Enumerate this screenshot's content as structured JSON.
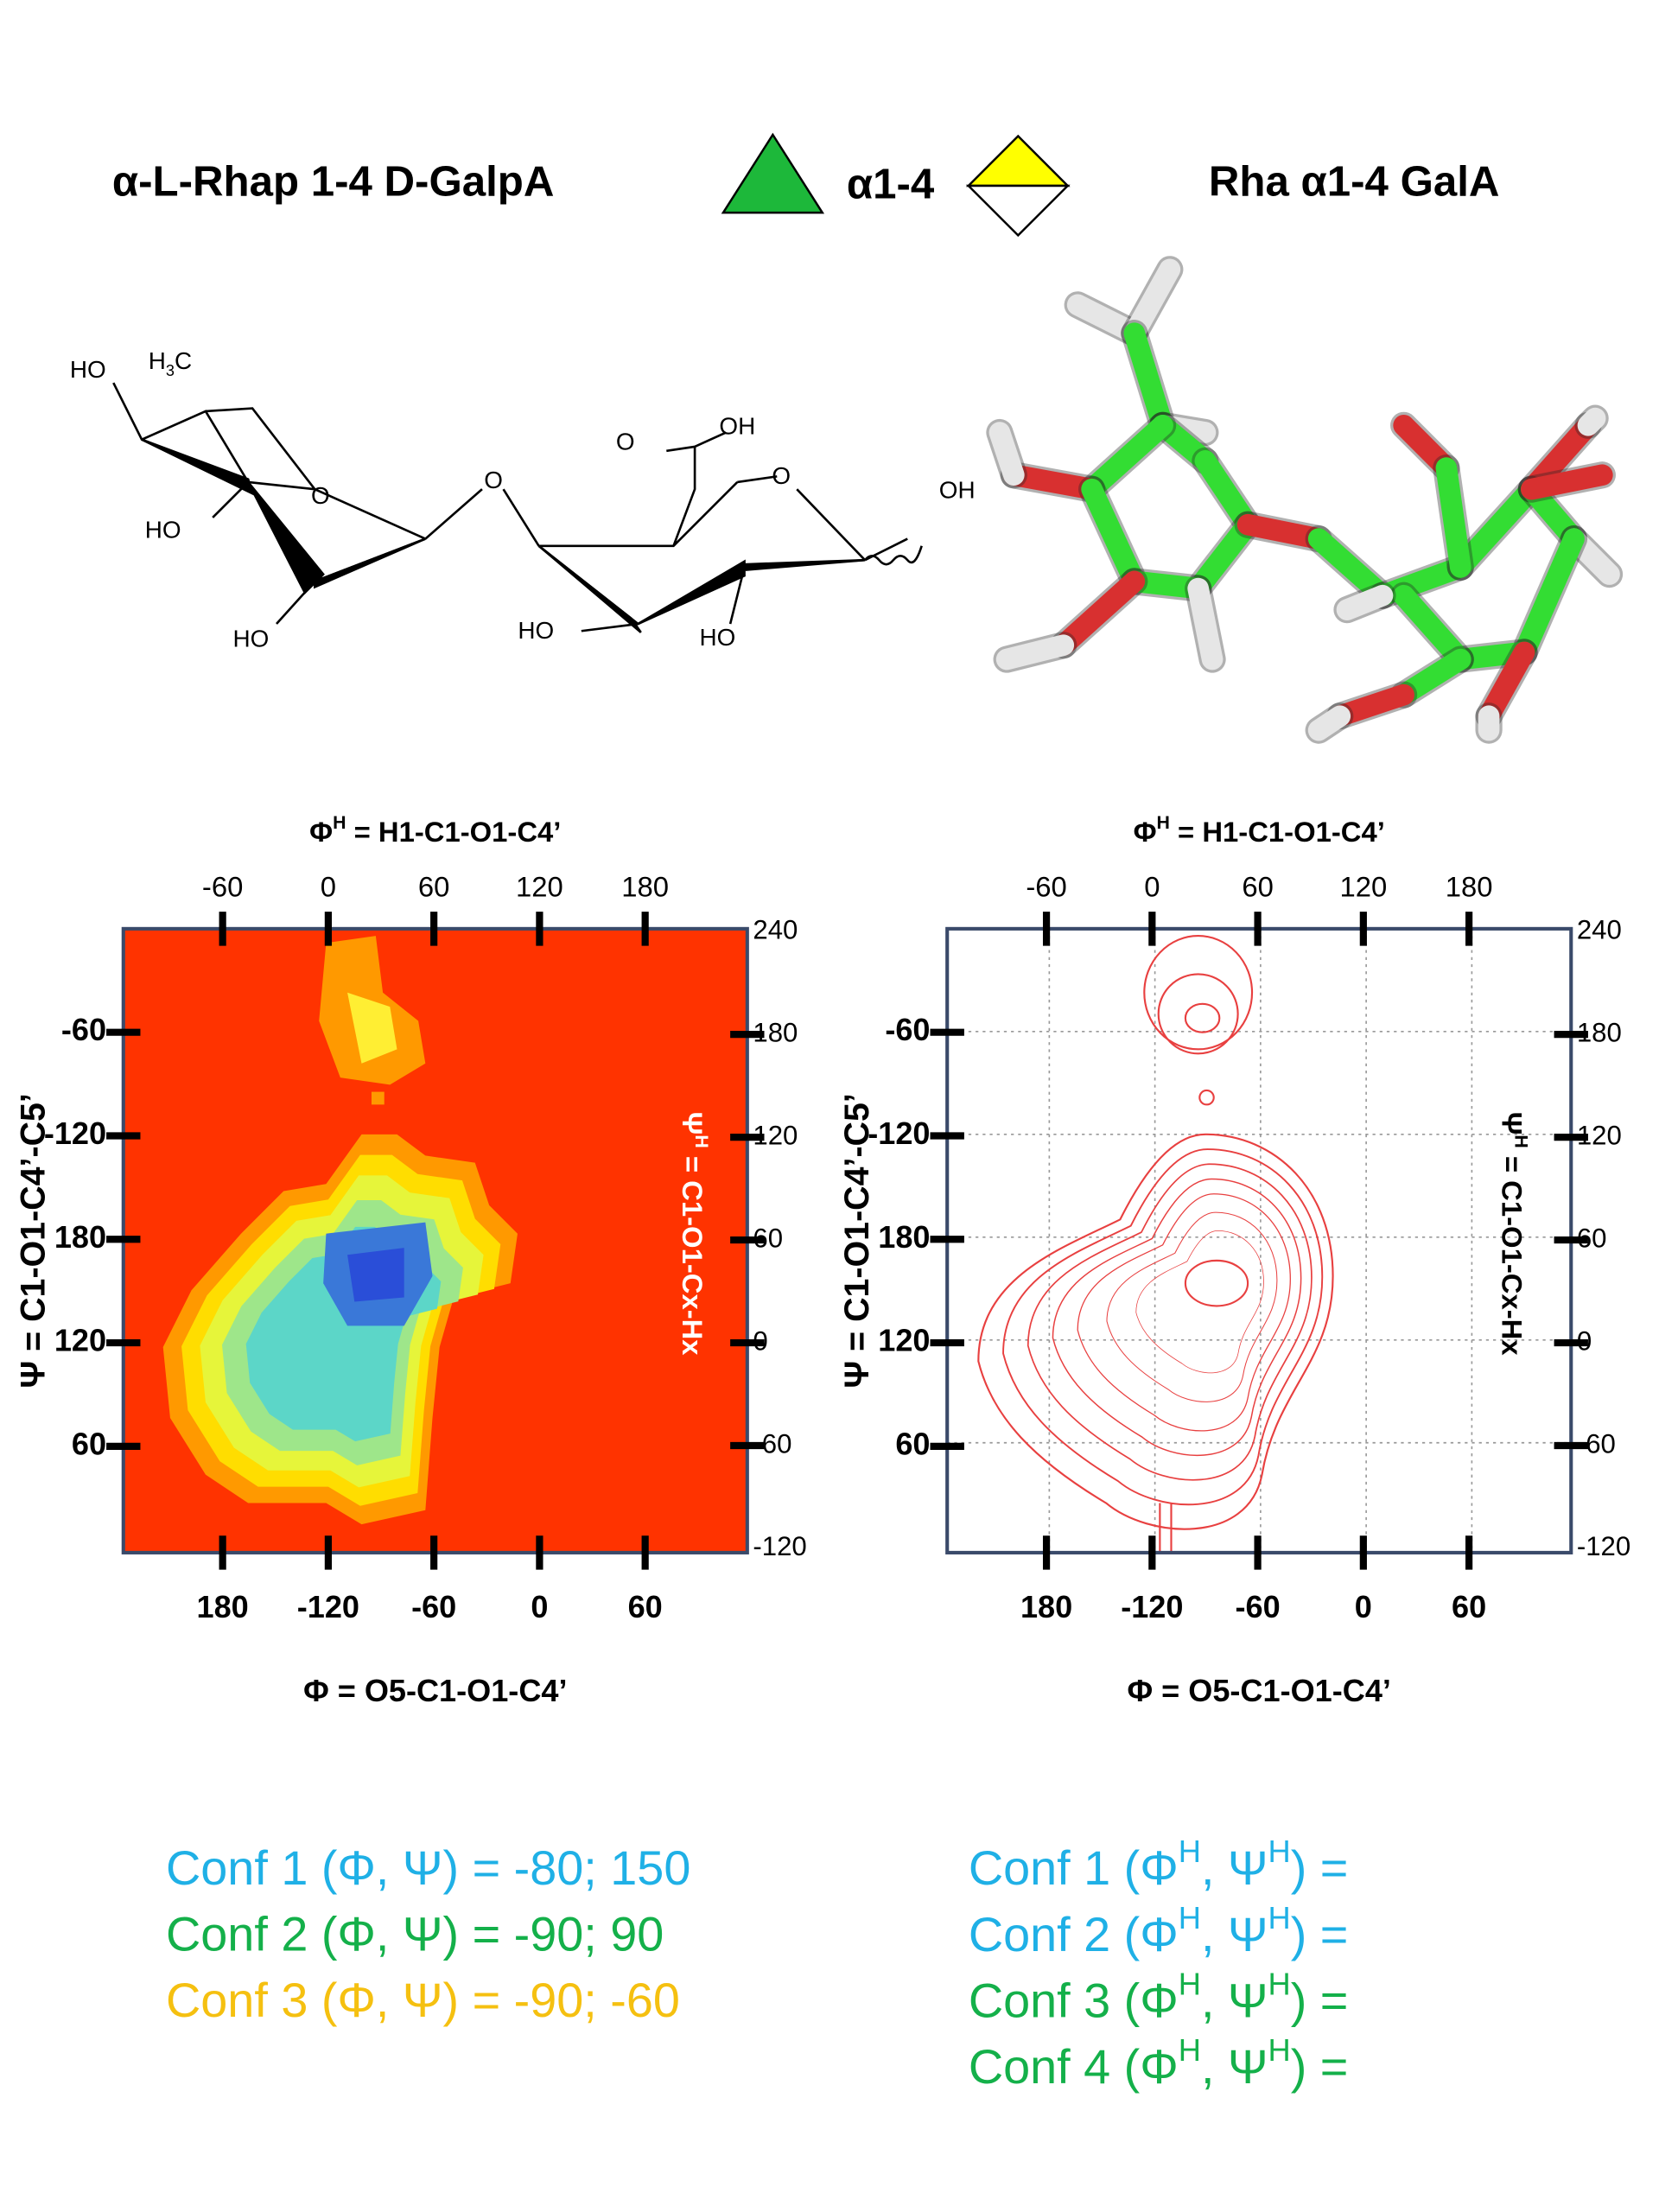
{
  "header": {
    "left_title": "α-L-Rhap 1-4 D-GalpA",
    "linkage": "α1-4",
    "right_title": "Rha α1-4 GalA"
  },
  "structure": {
    "labels": [
      {
        "parts": [
          "HO"
        ]
      },
      {
        "parts": [
          "H",
          "3",
          "C"
        ]
      },
      {
        "parts": [
          "O"
        ]
      },
      {
        "parts": [
          "HO"
        ]
      },
      {
        "parts": [
          "HO"
        ]
      },
      {
        "parts": [
          "O"
        ]
      },
      {
        "parts": [
          "O"
        ]
      },
      {
        "parts": [
          "OH"
        ]
      },
      {
        "parts": [
          "O"
        ]
      },
      {
        "parts": [
          "OH"
        ]
      },
      {
        "parts": [
          "HO"
        ]
      },
      {
        "parts": [
          "HO"
        ]
      }
    ]
  },
  "plots": [
    {
      "top_label": [
        "Φ",
        "H",
        " = H1-C1-O1-C4’"
      ],
      "top_ticks": [
        -60,
        0,
        60,
        120,
        180
      ],
      "bottom_ticks": [
        180,
        -120,
        -60,
        0,
        60
      ],
      "left_ticks": [
        -60,
        -120,
        180,
        120,
        60
      ],
      "right_ticks": [
        240,
        180,
        120,
        60,
        0,
        -60,
        -120
      ],
      "left_label": "Ψ = C1-O1-C4’-C5’",
      "right_label": [
        "Ψ",
        "H",
        " = C1-O1-Cx-Hx"
      ],
      "bottom_label": "Φ = O5-C1-O1-C4’"
    },
    {
      "top_label": [
        "Φ",
        "H",
        " = H1-C1-O1-C4’"
      ],
      "top_ticks": [
        -60,
        0,
        60,
        120,
        180
      ],
      "bottom_ticks": [
        180,
        -120,
        -60,
        0,
        60
      ],
      "left_ticks": [
        -60,
        -120,
        180,
        120,
        60
      ],
      "right_ticks": [
        240,
        180,
        120,
        60,
        0,
        -60,
        -120
      ],
      "left_label": "Ψ = C1-O1-C4’-C5’",
      "right_label": [
        "Ψ",
        "H",
        " = C1-O1-Cx-Hx"
      ],
      "bottom_label": "Φ = O5-C1-O1-C4’"
    }
  ],
  "conformations_left": [
    "Conf 1 (Φ, Ψ) = -80; 150",
    "Conf 2 (Φ, Ψ) =  -90; 90",
    "Conf 3 (Φ, Ψ) = -90; -60"
  ],
  "conformations_right": [
    [
      "Conf 1 (Φ",
      "H",
      ", Ψ",
      "H",
      ") ="
    ],
    [
      "Conf 2 (Φ",
      "H",
      ", Ψ",
      "H",
      ") ="
    ],
    [
      "Conf 3 (Φ",
      "H",
      ", Ψ",
      "H",
      ") ="
    ],
    [
      "Conf 4 (Φ",
      "H",
      ", Ψ",
      "H",
      ") ="
    ]
  ]
}
